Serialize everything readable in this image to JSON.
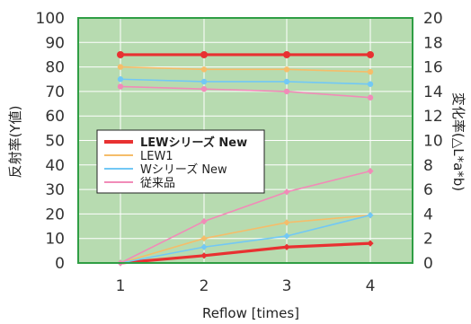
{
  "chart_data": {
    "type": "line",
    "x": [
      1,
      2,
      3,
      4
    ],
    "xlabel": "Reflow [times]",
    "ylabel_left": "反射率(Y値)",
    "ylabel_right": "変化率(△L*a*b)",
    "ylim_left": [
      0,
      100
    ],
    "ylim_right": [
      0,
      20
    ],
    "yticks_left": [
      0,
      10,
      20,
      30,
      40,
      50,
      60,
      70,
      80,
      90,
      100
    ],
    "yticks_right": [
      0,
      2,
      4,
      6,
      8,
      10,
      12,
      14,
      16,
      18,
      20
    ],
    "grid": true,
    "legend_placement": "center-left",
    "plot_background": "#b7dbb0",
    "frame_color": "#2f9e44",
    "reflectance_series": [
      {
        "name": "LEWシリーズ New",
        "color": "#e83131",
        "bold": true,
        "values": [
          85,
          85,
          85,
          85
        ]
      },
      {
        "name": "LEW1",
        "color": "#f5bd6a",
        "bold": false,
        "values": [
          80,
          79,
          79,
          78
        ]
      },
      {
        "name": "Wシリーズ New",
        "color": "#72c8f5",
        "bold": false,
        "values": [
          75,
          74,
          74,
          73
        ]
      },
      {
        "name": "従来品",
        "color": "#f18bb8",
        "bold": false,
        "values": [
          72,
          71,
          70,
          67.5
        ]
      }
    ],
    "change_series": [
      {
        "name": "LEWシリーズ New",
        "color": "#e83131",
        "values": [
          0,
          0.6,
          1.3,
          1.6
        ]
      },
      {
        "name": "LEW1",
        "color": "#f5bd6a",
        "values": [
          0,
          2.0,
          3.3,
          3.9
        ]
      },
      {
        "name": "Wシリーズ New",
        "color": "#72c8f5",
        "values": [
          0,
          1.3,
          2.2,
          3.9
        ]
      },
      {
        "name": "従来品",
        "color": "#f18bb8",
        "values": [
          0,
          3.4,
          5.8,
          7.5
        ]
      }
    ]
  }
}
